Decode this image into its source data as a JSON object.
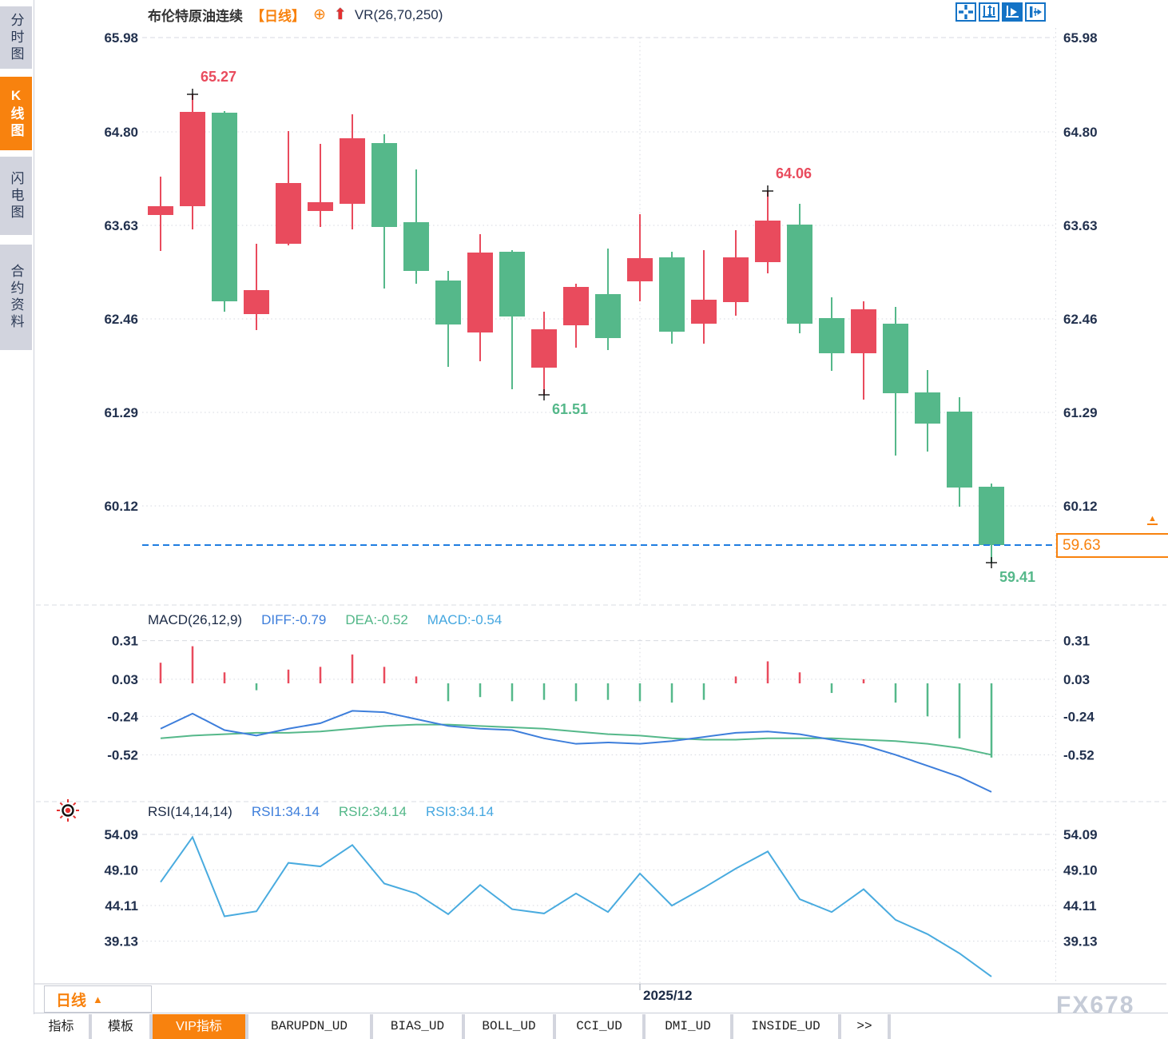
{
  "colors": {
    "up": "#e94b5d",
    "down": "#55b88a",
    "accent_orange": "#f8820e",
    "diff_blue": "#3d7edb",
    "dea_green": "#55b88a",
    "rsi_line": "#49abdf",
    "current_line_blue": "#1f7de0",
    "axis_text": "#22314e",
    "grid": "#d7dae1"
  },
  "sidebar": {
    "items": [
      {
        "label": "分时图",
        "active": false
      },
      {
        "label": "K线图",
        "active": true
      },
      {
        "label": "闪电图",
        "active": false
      },
      {
        "label": "合约资料",
        "active": false
      }
    ]
  },
  "title_bar": {
    "symbol": "布伦特原油连续",
    "period": "【日线】",
    "plus_icon": "⊕",
    "up_arrow_icon": "⬆",
    "indicator": "VR(26,70,250)"
  },
  "toolbar": {
    "icons": [
      "crosshair-tool",
      "axis-zoom-tool",
      "auto-fit-tool",
      "collapse-right-panel"
    ]
  },
  "chart_data": [
    {
      "type": "candlestick",
      "panel": "main",
      "title": "布伦特原油连续【日线】",
      "y_ticks": [
        65.98,
        64.8,
        63.63,
        62.46,
        61.29,
        60.12
      ],
      "x_axis_label": "2025/12",
      "x_axis_index": 15,
      "current_price": 59.63,
      "annotations": [
        {
          "index": 1,
          "price": 65.27,
          "label": "65.27",
          "side": "high"
        },
        {
          "index": 19,
          "price": 64.06,
          "label": "64.06",
          "side": "high"
        },
        {
          "index": 12,
          "price": 61.51,
          "label": "61.51",
          "side": "low"
        },
        {
          "index": 26,
          "price": 59.41,
          "label": "59.41",
          "side": "low"
        }
      ],
      "candles": [
        {
          "o": 63.76,
          "h": 64.24,
          "l": 63.31,
          "c": 63.87
        },
        {
          "o": 63.87,
          "h": 65.27,
          "l": 63.58,
          "c": 65.05
        },
        {
          "o": 65.04,
          "h": 65.06,
          "l": 62.55,
          "c": 62.68
        },
        {
          "o": 62.52,
          "h": 63.4,
          "l": 62.32,
          "c": 62.82
        },
        {
          "o": 63.4,
          "h": 64.81,
          "l": 63.38,
          "c": 64.16
        },
        {
          "o": 63.81,
          "h": 64.65,
          "l": 63.61,
          "c": 63.92
        },
        {
          "o": 63.9,
          "h": 65.02,
          "l": 63.58,
          "c": 64.72
        },
        {
          "o": 64.66,
          "h": 64.77,
          "l": 62.84,
          "c": 63.61
        },
        {
          "o": 63.67,
          "h": 64.33,
          "l": 62.9,
          "c": 63.06
        },
        {
          "o": 62.94,
          "h": 63.06,
          "l": 61.86,
          "c": 62.39
        },
        {
          "o": 62.29,
          "h": 63.52,
          "l": 61.93,
          "c": 63.29
        },
        {
          "o": 63.3,
          "h": 63.32,
          "l": 61.58,
          "c": 62.49
        },
        {
          "o": 61.85,
          "h": 62.55,
          "l": 61.51,
          "c": 62.33
        },
        {
          "o": 62.38,
          "h": 62.9,
          "l": 62.1,
          "c": 62.86
        },
        {
          "o": 62.77,
          "h": 63.34,
          "l": 62.07,
          "c": 62.22
        },
        {
          "o": 62.93,
          "h": 63.77,
          "l": 62.68,
          "c": 63.22
        },
        {
          "o": 63.23,
          "h": 63.3,
          "l": 62.15,
          "c": 62.3
        },
        {
          "o": 62.4,
          "h": 63.32,
          "l": 62.15,
          "c": 62.7
        },
        {
          "o": 62.67,
          "h": 63.57,
          "l": 62.5,
          "c": 63.23
        },
        {
          "o": 63.17,
          "h": 64.06,
          "l": 63.03,
          "c": 63.69
        },
        {
          "o": 63.64,
          "h": 63.9,
          "l": 62.28,
          "c": 62.4
        },
        {
          "o": 62.47,
          "h": 62.73,
          "l": 61.81,
          "c": 62.03
        },
        {
          "o": 62.03,
          "h": 62.68,
          "l": 61.45,
          "c": 62.58
        },
        {
          "o": 62.4,
          "h": 62.61,
          "l": 60.75,
          "c": 61.53
        },
        {
          "o": 61.54,
          "h": 61.82,
          "l": 60.8,
          "c": 61.15
        },
        {
          "o": 61.3,
          "h": 61.48,
          "l": 60.11,
          "c": 60.35
        },
        {
          "o": 60.36,
          "h": 60.4,
          "l": 59.41,
          "c": 59.63
        }
      ]
    },
    {
      "type": "macd",
      "panel": "indicator1",
      "params_label": "MACD(26,12,9)",
      "diff_label": "DIFF:-0.79",
      "dea_label": "DEA:-0.52",
      "macd_label": "MACD:-0.54",
      "y_ticks": [
        0.31,
        0.03,
        -0.24,
        -0.52
      ],
      "series": [
        {
          "name": "DIFF",
          "values": [
            -0.33,
            -0.22,
            -0.34,
            -0.38,
            -0.33,
            -0.29,
            -0.2,
            -0.21,
            -0.26,
            -0.31,
            -0.33,
            -0.34,
            -0.4,
            -0.44,
            -0.43,
            -0.44,
            -0.42,
            -0.39,
            -0.36,
            -0.35,
            -0.37,
            -0.41,
            -0.45,
            -0.52,
            -0.6,
            -0.68,
            -0.79
          ]
        },
        {
          "name": "DEA",
          "values": [
            -0.4,
            -0.38,
            -0.37,
            -0.36,
            -0.36,
            -0.35,
            -0.33,
            -0.31,
            -0.3,
            -0.3,
            -0.31,
            -0.32,
            -0.33,
            -0.35,
            -0.37,
            -0.38,
            -0.4,
            -0.41,
            -0.41,
            -0.4,
            -0.4,
            -0.4,
            -0.41,
            -0.42,
            -0.44,
            -0.47,
            -0.52
          ]
        },
        {
          "name": "HIST",
          "values": [
            0.15,
            0.27,
            0.08,
            -0.05,
            0.1,
            0.12,
            0.21,
            0.12,
            0.05,
            -0.13,
            -0.1,
            -0.13,
            -0.12,
            -0.13,
            -0.12,
            -0.13,
            -0.14,
            -0.12,
            0.05,
            0.16,
            0.08,
            -0.07,
            0.03,
            -0.14,
            -0.24,
            -0.4,
            -0.54
          ]
        }
      ]
    },
    {
      "type": "line",
      "panel": "indicator2",
      "params_label": "RSI(14,14,14)",
      "rsi1_label": "RSI1:34.14",
      "rsi2_label": "RSI2:34.14",
      "rsi3_label": "RSI3:34.14",
      "y_ticks": [
        54.09,
        49.1,
        44.11,
        39.13
      ],
      "series": [
        {
          "name": "RSI",
          "values": [
            47.4,
            53.7,
            42.6,
            43.3,
            50.1,
            49.6,
            52.6,
            47.2,
            45.8,
            42.9,
            47.0,
            43.6,
            43.0,
            45.8,
            43.2,
            48.6,
            44.1,
            46.6,
            49.3,
            51.7,
            45.0,
            43.2,
            46.4,
            42.1,
            40.1,
            37.4,
            34.14
          ]
        }
      ]
    }
  ],
  "price_box": {
    "value": "59.63"
  },
  "bottom_bar": {
    "period_button": {
      "label": "日线",
      "arrow": "▲"
    },
    "date_label": "2025/12",
    "watermark": "FX678"
  },
  "tabs": [
    {
      "label": "指标",
      "active": false
    },
    {
      "label": "模板",
      "active": false
    },
    {
      "label": "VIP指标",
      "active": true
    },
    {
      "label": "BARUPDN_UD",
      "active": false
    },
    {
      "label": "BIAS_UD",
      "active": false
    },
    {
      "label": "BOLL_UD",
      "active": false
    },
    {
      "label": "CCI_UD",
      "active": false
    },
    {
      "label": "DMI_UD",
      "active": false
    },
    {
      "label": "INSIDE_UD",
      "active": false
    },
    {
      "label": ">>",
      "active": false
    }
  ]
}
